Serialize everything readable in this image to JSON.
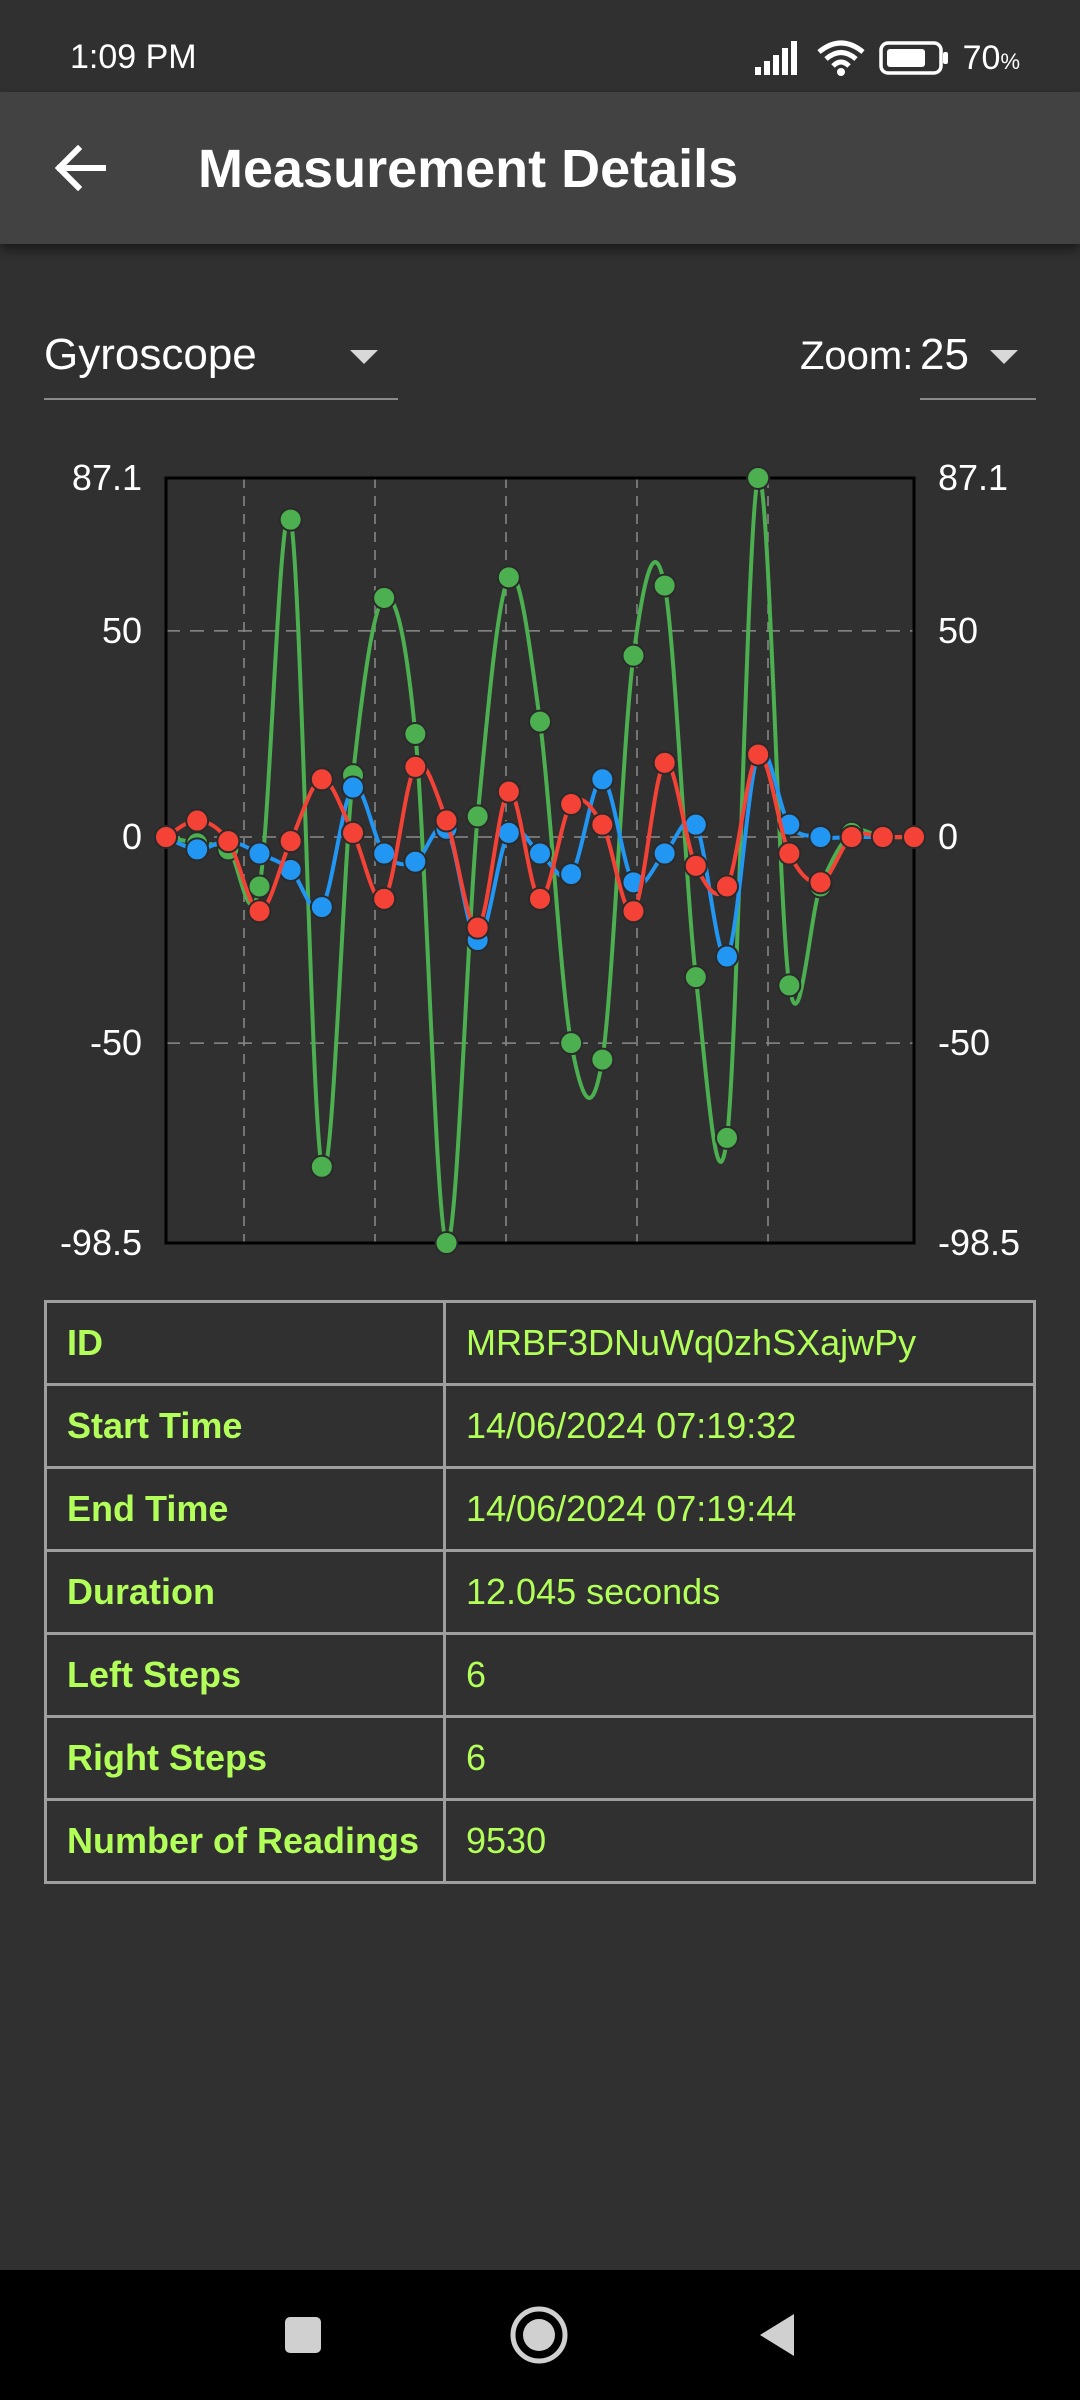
{
  "status_bar": {
    "time": "1:09 PM",
    "battery_percent": "70",
    "battery_percent_sign": "%",
    "icons": [
      "signal-icon",
      "wifi-icon",
      "battery-icon"
    ]
  },
  "app_bar": {
    "title": "Measurement Details",
    "back_icon": "arrow-back-icon"
  },
  "controls": {
    "sensor_selected": "Gyroscope",
    "zoom_label": "Zoom:",
    "zoom_value": "25"
  },
  "chart_data": {
    "type": "line",
    "ylim": [
      -98.5,
      87.1
    ],
    "y_ticks": [
      "87.1",
      "50",
      "0",
      "-50",
      "-98.5"
    ],
    "y_tick_values": [
      87.1,
      50,
      0,
      -50,
      -98.5
    ],
    "grid": true,
    "legend": "none",
    "series": [
      {
        "color": "#4caf50",
        "values": [
          0,
          -1.5,
          -3,
          -12,
          77,
          -80,
          15,
          58,
          25,
          -98.5,
          5,
          63,
          28,
          -50,
          -54,
          44,
          61,
          -34,
          -73,
          87.1,
          -36,
          -12,
          1,
          0,
          0
        ]
      },
      {
        "color": "#2196f3",
        "values": [
          0,
          -3,
          -1,
          -4,
          -8,
          -17,
          12,
          -4,
          -6,
          2,
          -25,
          1,
          -4,
          -9,
          14,
          -11,
          -4,
          3,
          -29,
          20,
          3,
          0,
          0,
          0,
          0
        ]
      },
      {
        "color": "#f44336",
        "values": [
          0,
          4,
          -1,
          -18,
          -1,
          14,
          1,
          -15,
          17,
          4,
          -22,
          11,
          -15,
          8,
          3,
          -18,
          18,
          -7,
          -12,
          20,
          -4,
          -11,
          0,
          0,
          0
        ]
      }
    ]
  },
  "details": [
    {
      "label": "ID",
      "value": "MRBF3DNuWq0zhSXajwPy"
    },
    {
      "label": "Start Time",
      "value": "14/06/2024 07:19:32"
    },
    {
      "label": "End Time",
      "value": "14/06/2024 07:19:44"
    },
    {
      "label": "Duration",
      "value": "12.045 seconds"
    },
    {
      "label": "Left Steps",
      "value": "6"
    },
    {
      "label": "Right Steps",
      "value": "6"
    },
    {
      "label": "Number of Readings",
      "value": "9530"
    }
  ],
  "nav_bar": {
    "icons": [
      "recents-square-icon",
      "home-circle-icon",
      "back-triangle-icon"
    ]
  }
}
